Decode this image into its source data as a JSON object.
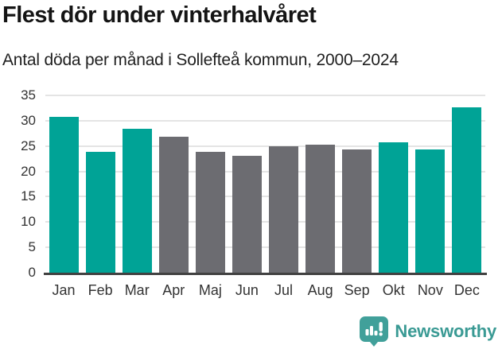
{
  "header": {
    "title": "Flest dör under vinterhalvåret",
    "subtitle": "Antal döda per månad i Sollefteå kommun, 2000–2024"
  },
  "chart_data": {
    "type": "bar",
    "title": "Flest dör under vinterhalvåret",
    "subtitle": "Antal döda per månad i Sollefteå kommun, 2000–2024",
    "categories": [
      "Jan",
      "Feb",
      "Mar",
      "Apr",
      "Maj",
      "Jun",
      "Jul",
      "Aug",
      "Sep",
      "Okt",
      "Nov",
      "Dec"
    ],
    "values": [
      30.8,
      23.8,
      28.4,
      26.9,
      23.8,
      23.0,
      25.0,
      25.2,
      24.4,
      25.8,
      24.3,
      32.6
    ],
    "bar_colors": [
      "#00a396",
      "#00a396",
      "#00a396",
      "#6c6c71",
      "#6c6c71",
      "#6c6c71",
      "#6c6c71",
      "#6c6c71",
      "#6c6c71",
      "#00a396",
      "#00a396",
      "#00a396"
    ],
    "highlighted_months": [
      "Jan",
      "Feb",
      "Mar",
      "Okt",
      "Nov",
      "Dec"
    ],
    "xlabel": "",
    "ylabel": "",
    "ylim": [
      0,
      35
    ],
    "yticks": [
      0,
      5,
      10,
      15,
      20,
      25,
      30,
      35
    ],
    "grid": "horizontal",
    "legend_position": "none"
  },
  "colors": {
    "highlight_bar": "#00a396",
    "muted_bar": "#6c6c71",
    "gridline": "#e4e4e4",
    "axis_line": "#414141",
    "tick_text": "#333333",
    "brand_teal": "#3a9a94"
  },
  "footer": {
    "brand": "Newsworthy",
    "logo_icon": "speech-bubble-bar-chart-icon"
  }
}
